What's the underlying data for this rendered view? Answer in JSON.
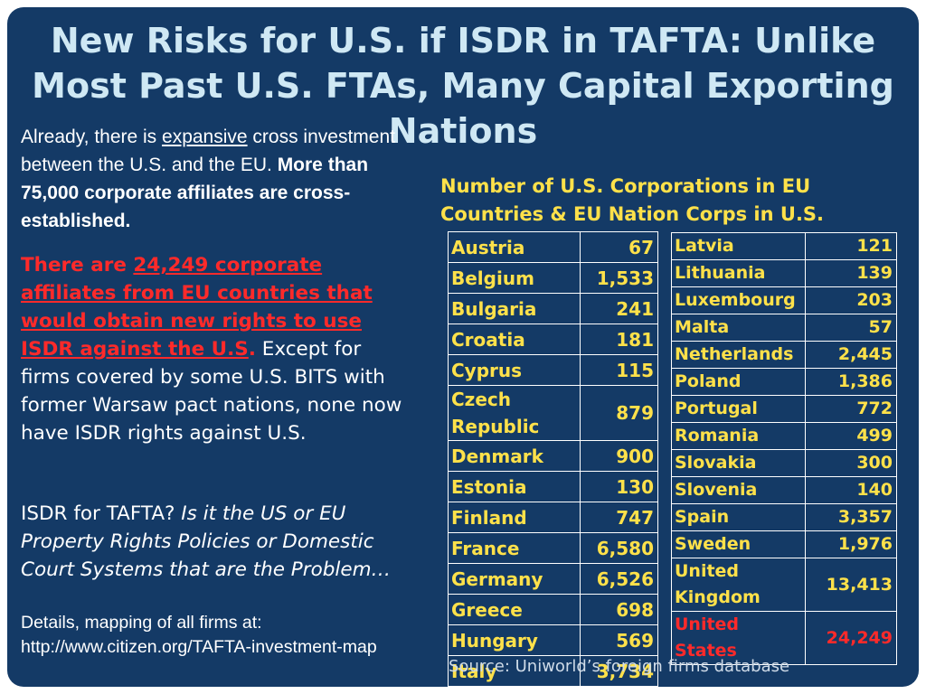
{
  "title": "New Risks for U.S. if ISDR in TAFTA: Unlike Most Past U.S. FTAs, Many Capital Exporting Nations",
  "intro": {
    "part1": "Already, there is ",
    "underlined": "expansive",
    "part2": " cross investment between the U.S. and the EU. ",
    "bold": "More than 75,000 corporate affiliates are cross-established."
  },
  "risk": {
    "red_lead": "There are ",
    "red_underlined": "24,249 corporate affiliates from EU countries that would obtain new rights to use ISDR against the U.S",
    "red_period": ".",
    "rest": " Except for firms covered by some U.S. BITS with former Warsaw pact nations, none now have ISDR rights against U.S."
  },
  "isdr": {
    "lead": "ISDR for TAFTA?  ",
    "italic": "Is it the US or EU Property Rights Policies or Domestic Court Systems that are the Problem…"
  },
  "details": "Details, mapping of all firms at: http://www.citizen.org/TAFTA-investment-map",
  "table_heading": "Number of U.S. Corporations in EU Countries & EU Nation Corps in U.S.",
  "table_left": [
    {
      "country": "Austria",
      "count": "67"
    },
    {
      "country": "Belgium",
      "count": "1,533"
    },
    {
      "country": "Bulgaria",
      "count": "241"
    },
    {
      "country": "Croatia",
      "count": "181"
    },
    {
      "country": "Cyprus",
      "count": "115"
    },
    {
      "country": "Czech Republic",
      "count": "879"
    },
    {
      "country": "Denmark",
      "count": "900"
    },
    {
      "country": "Estonia",
      "count": "130"
    },
    {
      "country": "Finland",
      "count": "747"
    },
    {
      "country": "France",
      "count": "6,580"
    },
    {
      "country": "Germany",
      "count": "6,526"
    },
    {
      "country": "Greece",
      "count": "698"
    },
    {
      "country": "Hungary",
      "count": "569"
    },
    {
      "country": "Italy",
      "count": "3,734"
    }
  ],
  "table_right": [
    {
      "country": "Latvia",
      "count": "121"
    },
    {
      "country": "Lithuania",
      "count": "139"
    },
    {
      "country": "Luxembourg",
      "count": "203"
    },
    {
      "country": "Malta",
      "count": "57"
    },
    {
      "country": "Netherlands",
      "count": "2,445"
    },
    {
      "country": "Poland",
      "count": "1,386"
    },
    {
      "country": "Portugal",
      "count": "772"
    },
    {
      "country": "Romania",
      "count": "499"
    },
    {
      "country": "Slovakia",
      "count": "300"
    },
    {
      "country": "Slovenia",
      "count": "140"
    },
    {
      "country": "Spain",
      "count": "3,357"
    },
    {
      "country": "Sweden",
      "count": "1,976"
    },
    {
      "country": "United Kingdom",
      "count": "13,413"
    },
    {
      "country": "United States",
      "count": "24,249",
      "highlight": true
    }
  ],
  "source": "Source: Uniworld’s foreign firms database",
  "colors": {
    "background": "#143a66",
    "title": "#cfe8f4",
    "table_text": "#ffe14a",
    "highlight_red": "#ff2a2a"
  }
}
